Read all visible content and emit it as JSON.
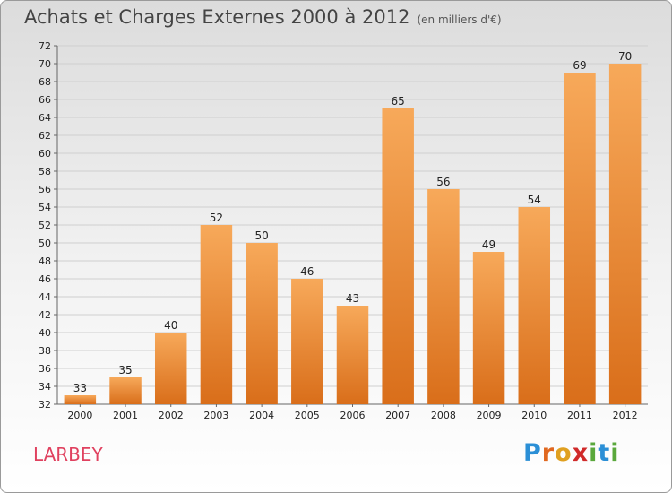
{
  "title": "Achats et Charges Externes 2000 à 2012",
  "subtitle": "(en milliers d'€)",
  "place": "LARBEY",
  "logo": {
    "text": "Proxiti",
    "letters": [
      {
        "ch": "P",
        "color": "#2b8fd6"
      },
      {
        "ch": "r",
        "color": "#e06820"
      },
      {
        "ch": "o",
        "color": "#e0a020"
      },
      {
        "ch": "x",
        "color": "#d02a2a"
      },
      {
        "ch": "i",
        "color": "#5aa83c"
      },
      {
        "ch": "t",
        "color": "#2b8fd6"
      },
      {
        "ch": "i",
        "color": "#5aa83c"
      }
    ]
  },
  "colors": {
    "bar_top": "#f7a95a",
    "bar_bottom": "#d96e1a",
    "place": "#e0415f"
  },
  "chart_data": {
    "type": "bar",
    "title": "Achats et Charges Externes 2000 à 2012",
    "subtitle": "(en milliers d'€)",
    "categories": [
      "2000",
      "2001",
      "2002",
      "2003",
      "2004",
      "2005",
      "2006",
      "2007",
      "2008",
      "2009",
      "2010",
      "2011",
      "2012"
    ],
    "values": [
      33,
      35,
      40,
      52,
      50,
      46,
      43,
      65,
      56,
      49,
      54,
      69,
      70
    ],
    "ylim": [
      32,
      72
    ],
    "yticks": [
      32,
      34,
      36,
      38,
      40,
      42,
      44,
      46,
      48,
      50,
      52,
      54,
      56,
      58,
      60,
      62,
      64,
      66,
      68,
      70,
      72
    ],
    "grid": true
  }
}
